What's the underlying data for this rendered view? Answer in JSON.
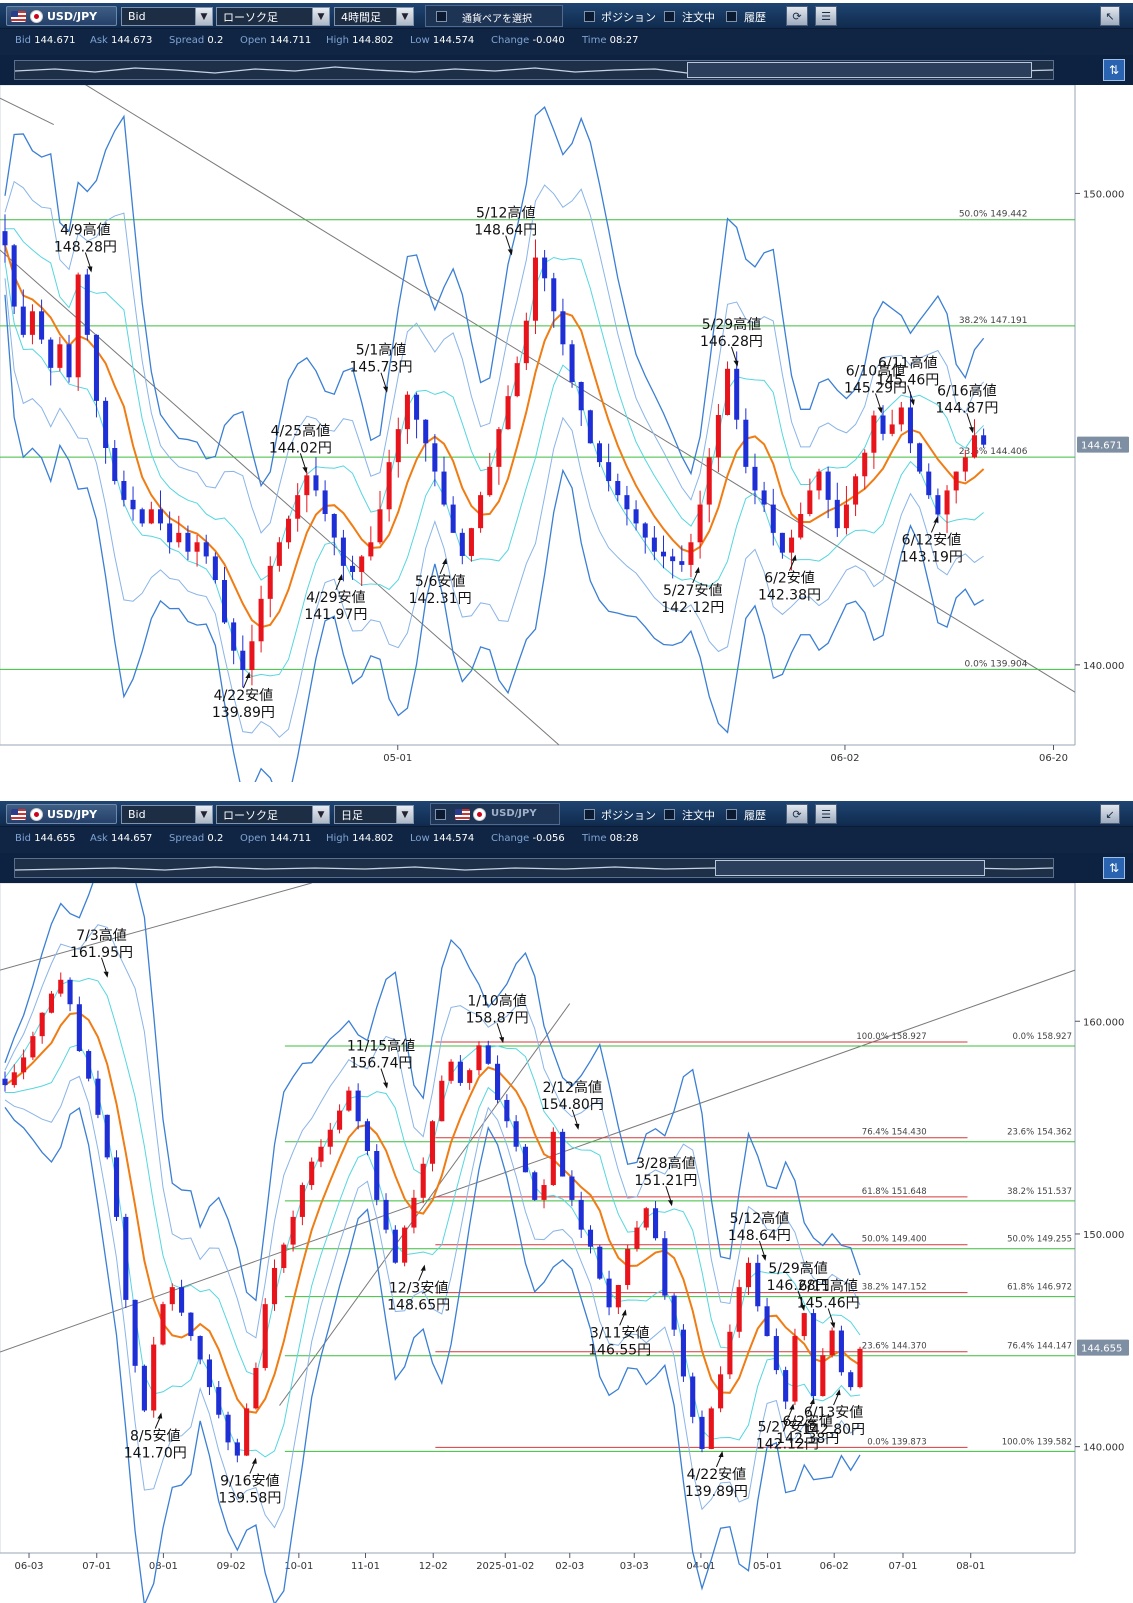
{
  "chart_data": [
    {
      "type": "line",
      "panel": "top",
      "toolbar": {
        "pair": "USD/JPY",
        "price_type": "Bid",
        "chart_type": "ローソク足",
        "timeframe": "4時間足",
        "pair_select": "通貨ペアを選択",
        "position": "ポジション",
        "orders": "注文中",
        "history": "履歴"
      },
      "quote": {
        "bid_label": "Bid",
        "bid": "144.671",
        "ask_label": "Ask",
        "ask": "144.673",
        "spread_label": "Spread",
        "spread": "0.2",
        "open_label": "Open",
        "open": "144.711",
        "high_label": "High",
        "high": "144.802",
        "low_label": "Low",
        "low": "144.574",
        "change_label": "Change",
        "change": "-0.040",
        "time_label": "Time",
        "time": "08:27"
      },
      "y_ticks": [
        "150.000",
        "140.000"
      ],
      "x_ticks": [
        "05-01",
        "06-02",
        "06-20"
      ],
      "current_price": "144.671",
      "ylim": [
        138.3,
        152.3
      ],
      "fib_levels": [
        {
          "label": "50.0%",
          "price_text": "149.442",
          "value": 149.442
        },
        {
          "label": "38.2%",
          "price_text": "147.191",
          "value": 147.191
        },
        {
          "label": "23.6%",
          "price_text": "144.406",
          "value": 144.406
        },
        {
          "label": "0.0%",
          "price_text": "139.904",
          "value": 139.904
        }
      ],
      "annotations": [
        {
          "text": [
            "4/9高値",
            "148.28円"
          ],
          "x": 0.085,
          "value": 148.28,
          "kind": "high"
        },
        {
          "text": [
            "4/25高値",
            "144.02円"
          ],
          "x": 0.285,
          "value": 144.02,
          "kind": "high"
        },
        {
          "text": [
            "4/22安値",
            "139.89円"
          ],
          "x": 0.232,
          "value": 139.89,
          "kind": "low"
        },
        {
          "text": [
            "4/29安値",
            "141.97円"
          ],
          "x": 0.318,
          "value": 141.97,
          "kind": "low"
        },
        {
          "text": [
            "5/1高値",
            "145.73円"
          ],
          "x": 0.36,
          "value": 145.73,
          "kind": "high"
        },
        {
          "text": [
            "5/6安値",
            "142.31円"
          ],
          "x": 0.415,
          "value": 142.31,
          "kind": "low"
        },
        {
          "text": [
            "5/12高値",
            "148.64円"
          ],
          "x": 0.476,
          "value": 148.64,
          "kind": "high"
        },
        {
          "text": [
            "5/27安値",
            "142.12円"
          ],
          "x": 0.65,
          "value": 142.12,
          "kind": "low"
        },
        {
          "text": [
            "5/29高値",
            "146.28円"
          ],
          "x": 0.686,
          "value": 146.28,
          "kind": "high"
        },
        {
          "text": [
            "6/2安値",
            "142.38円"
          ],
          "x": 0.74,
          "value": 142.38,
          "kind": "low"
        },
        {
          "text": [
            "6/10高値",
            "145.29円"
          ],
          "x": 0.82,
          "value": 145.29,
          "kind": "high"
        },
        {
          "text": [
            "6/11高値",
            "145.46円"
          ],
          "x": 0.85,
          "value": 145.46,
          "kind": "high"
        },
        {
          "text": [
            "6/12安値",
            "143.19円"
          ],
          "x": 0.872,
          "value": 143.19,
          "kind": "low"
        },
        {
          "text": [
            "6/16高値",
            "144.87円"
          ],
          "x": 0.905,
          "value": 144.87,
          "kind": "high"
        }
      ],
      "series": [
        {
          "values": [
            148.9,
            147.6,
            147.0,
            147.5,
            146.9,
            146.3,
            146.8,
            146.1,
            148.28,
            147.0,
            145.6,
            144.6,
            143.9,
            143.5,
            143.3,
            143.0,
            143.3,
            143.0,
            142.6,
            142.8,
            142.4,
            142.6,
            142.3,
            141.8,
            140.9,
            140.3,
            139.89,
            140.5,
            141.4,
            142.1,
            142.6,
            143.1,
            143.6,
            144.02,
            143.7,
            143.2,
            142.7,
            142.1,
            141.97,
            142.3,
            142.6,
            143.3,
            144.3,
            145.0,
            145.73,
            145.2,
            144.7,
            144.1,
            143.4,
            142.8,
            142.31,
            142.9,
            143.6,
            144.2,
            145.0,
            145.7,
            146.4,
            147.3,
            148.64,
            148.2,
            147.5,
            146.8,
            146.0,
            145.4,
            144.7,
            144.3,
            143.9,
            143.6,
            143.3,
            143.0,
            142.7,
            142.4,
            142.3,
            142.2,
            142.12,
            142.6,
            143.4,
            144.4,
            145.3,
            146.28,
            145.2,
            144.2,
            143.7,
            143.4,
            142.8,
            142.38,
            142.7,
            143.2,
            143.7,
            144.1,
            143.5,
            142.9,
            143.4,
            144.0,
            144.5,
            145.29,
            144.9,
            145.1,
            145.46,
            144.7,
            144.1,
            143.6,
            143.19,
            143.7,
            144.1,
            144.4,
            144.87,
            144.67
          ]
        }
      ]
    },
    {
      "type": "line",
      "panel": "bottom",
      "toolbar": {
        "pair": "USD/JPY",
        "price_type": "Bid",
        "chart_type": "ローソク足",
        "timeframe": "日足",
        "pair_select": "USD/JPY",
        "position": "ポジション",
        "orders": "注文中",
        "history": "履歴"
      },
      "quote": {
        "bid_label": "Bid",
        "bid": "144.655",
        "ask_label": "Ask",
        "ask": "144.657",
        "spread_label": "Spread",
        "spread": "0.2",
        "open_label": "Open",
        "open": "144.711",
        "high_label": "High",
        "high": "144.802",
        "low_label": "Low",
        "low": "144.574",
        "change_label": "Change",
        "change": "-0.056",
        "time_label": "Time",
        "time": "08:28"
      },
      "y_ticks": [
        "160.000",
        "150.000",
        "140.000"
      ],
      "x_ticks": [
        "06-03",
        "07-01",
        "08-01",
        "09-02",
        "10-01",
        "11-01",
        "12-02",
        "2025-01-02",
        "02-03",
        "03-03",
        "04-01",
        "05-01",
        "06-02",
        "07-01",
        "08-01"
      ],
      "current_price": "144.655",
      "ylim": [
        135.0,
        166.5
      ],
      "fib_levels": [
        {
          "label": "100.0%",
          "price_text": "158.927",
          "value": 158.93,
          "right_label": "0.0%",
          "right_price": "158.927"
        },
        {
          "label": "76.4%",
          "price_text": "154.430",
          "value": 154.43,
          "right_label": "23.6%",
          "right_price": "154.362"
        },
        {
          "label": "61.8%",
          "price_text": "151.648",
          "value": 151.65,
          "right_label": "38.2%",
          "right_price": "151.537"
        },
        {
          "label": "50.0%",
          "price_text": "149.400",
          "value": 149.4,
          "right_label": "50.0%",
          "right_price": "149.255"
        },
        {
          "label": "38.2%",
          "price_text": "147.152",
          "value": 147.15,
          "right_label": "61.8%",
          "right_price": "146.972"
        },
        {
          "label": "23.6%",
          "price_text": "144.370",
          "value": 144.37,
          "right_label": "76.4%",
          "right_price": "144.147"
        },
        {
          "label": "0.0%",
          "price_text": "139.873",
          "value": 139.87,
          "right_label": "100.0%",
          "right_price": "139.582"
        }
      ],
      "annotations": [
        {
          "text": [
            "7/3高値",
            "161.95円"
          ],
          "x": 0.1,
          "value": 161.95,
          "kind": "high"
        },
        {
          "text": [
            "8/5安値",
            "141.70円"
          ],
          "x": 0.15,
          "value": 141.7,
          "kind": "low"
        },
        {
          "text": [
            "9/16安値",
            "139.58円"
          ],
          "x": 0.238,
          "value": 139.58,
          "kind": "low"
        },
        {
          "text": [
            "11/15高値",
            "156.74円"
          ],
          "x": 0.36,
          "value": 156.74,
          "kind": "high"
        },
        {
          "text": [
            "12/3安値",
            "148.65円"
          ],
          "x": 0.395,
          "value": 148.65,
          "kind": "low"
        },
        {
          "text": [
            "1/10高値",
            "158.87円"
          ],
          "x": 0.468,
          "value": 158.87,
          "kind": "high"
        },
        {
          "text": [
            "2/12高値",
            "154.80円"
          ],
          "x": 0.538,
          "value": 154.8,
          "kind": "high"
        },
        {
          "text": [
            "3/11安値",
            "146.55円"
          ],
          "x": 0.582,
          "value": 146.55,
          "kind": "low"
        },
        {
          "text": [
            "3/28高値",
            "151.21円"
          ],
          "x": 0.625,
          "value": 151.21,
          "kind": "high"
        },
        {
          "text": [
            "4/22安値",
            "139.89円"
          ],
          "x": 0.672,
          "value": 139.89,
          "kind": "low"
        },
        {
          "text": [
            "5/12高値",
            "148.64円"
          ],
          "x": 0.712,
          "value": 148.64,
          "kind": "high"
        },
        {
          "text": [
            "5/27安値",
            "142.12円"
          ],
          "x": 0.738,
          "value": 142.12,
          "kind": "low"
        },
        {
          "text": [
            "5/29高値",
            "146.28円"
          ],
          "x": 0.748,
          "value": 146.28,
          "kind": "high"
        },
        {
          "text": [
            "6/2安値",
            "142.38円"
          ],
          "x": 0.757,
          "value": 142.38,
          "kind": "low"
        },
        {
          "text": [
            "6/11高値",
            "145.46円"
          ],
          "x": 0.776,
          "value": 145.46,
          "kind": "high"
        },
        {
          "text": [
            "6/13安値",
            "142.80円"
          ],
          "x": 0.781,
          "value": 142.8,
          "kind": "low"
        }
      ],
      "series": [
        {
          "values": [
            157.0,
            157.6,
            158.3,
            159.3,
            160.4,
            161.3,
            161.95,
            160.8,
            158.6,
            157.3,
            155.6,
            153.6,
            150.8,
            146.9,
            143.8,
            141.7,
            144.8,
            146.7,
            147.5,
            146.3,
            145.2,
            144.1,
            142.8,
            141.5,
            140.2,
            139.58,
            141.8,
            143.7,
            146.7,
            148.4,
            149.5,
            150.8,
            152.3,
            153.4,
            154.1,
            154.9,
            155.8,
            156.74,
            155.3,
            153.9,
            151.6,
            150.2,
            148.65,
            150.3,
            151.7,
            153.3,
            155.3,
            157.2,
            158.1,
            157.1,
            157.7,
            158.87,
            158.0,
            156.3,
            155.3,
            154.1,
            152.9,
            151.6,
            152.3,
            154.8,
            152.7,
            151.6,
            150.2,
            149.4,
            147.9,
            146.55,
            147.6,
            149.3,
            150.3,
            151.21,
            149.8,
            147.1,
            145.5,
            143.3,
            141.4,
            139.89,
            141.8,
            143.4,
            145.4,
            147.5,
            148.64,
            146.6,
            145.2,
            143.6,
            142.12,
            145.2,
            146.28,
            142.38,
            144.3,
            145.46,
            143.5,
            142.8,
            144.6
          ]
        }
      ]
    }
  ]
}
